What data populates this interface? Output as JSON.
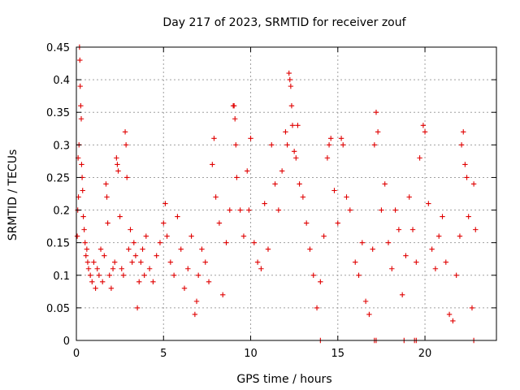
{
  "chart_data": {
    "type": "scatter",
    "title": "Day 217 of 2023, SRMTID for receiver zouf",
    "xlabel": "GPS time / hours",
    "ylabel": "SRMTID / TECUs",
    "xlim": [
      0,
      24.1
    ],
    "ylim": [
      0,
      0.45
    ],
    "xticks": [
      0,
      5,
      10,
      15,
      20
    ],
    "xtick_labels": [
      "0",
      "5",
      "10",
      "15",
      "20"
    ],
    "yticks": [
      0,
      0.05,
      0.1,
      0.15,
      0.2,
      0.25,
      0.3,
      0.35,
      0.4,
      0.45
    ],
    "ytick_labels": [
      "0",
      "0.05",
      "0.1",
      "0.15",
      "0.2",
      "0.25",
      "0.3",
      "0.35",
      "0.4",
      "0.45"
    ],
    "grid": true,
    "marker": "plus",
    "color": "#e00000",
    "series": [
      {
        "name": "SRMTID",
        "points": [
          [
            0.05,
            0.16
          ],
          [
            0.08,
            0.2
          ],
          [
            0.1,
            0.28
          ],
          [
            0.12,
            0.22
          ],
          [
            0.15,
            0.3
          ],
          [
            0.18,
            0.45
          ],
          [
            0.2,
            0.43
          ],
          [
            0.22,
            0.39
          ],
          [
            0.25,
            0.36
          ],
          [
            0.28,
            0.34
          ],
          [
            0.3,
            0.27
          ],
          [
            0.33,
            0.25
          ],
          [
            0.36,
            0.23
          ],
          [
            0.4,
            0.19
          ],
          [
            0.45,
            0.17
          ],
          [
            0.5,
            0.15
          ],
          [
            0.55,
            0.13
          ],
          [
            0.6,
            0.14
          ],
          [
            0.65,
            0.12
          ],
          [
            0.7,
            0.11
          ],
          [
            0.8,
            0.1
          ],
          [
            0.9,
            0.09
          ],
          [
            1.0,
            0.12
          ],
          [
            1.1,
            0.08
          ],
          [
            1.2,
            0.11
          ],
          [
            1.3,
            0.1
          ],
          [
            1.4,
            0.14
          ],
          [
            1.5,
            0.09
          ],
          [
            1.6,
            0.13
          ],
          [
            1.7,
            0.24
          ],
          [
            1.75,
            0.22
          ],
          [
            1.8,
            0.18
          ],
          [
            1.9,
            0.1
          ],
          [
            2.0,
            0.08
          ],
          [
            2.1,
            0.11
          ],
          [
            2.2,
            0.12
          ],
          [
            2.3,
            0.28
          ],
          [
            2.35,
            0.27
          ],
          [
            2.4,
            0.26
          ],
          [
            2.5,
            0.19
          ],
          [
            2.6,
            0.11
          ],
          [
            2.7,
            0.1
          ],
          [
            2.8,
            0.32
          ],
          [
            2.85,
            0.3
          ],
          [
            2.9,
            0.25
          ],
          [
            3.0,
            0.14
          ],
          [
            3.1,
            0.17
          ],
          [
            3.2,
            0.12
          ],
          [
            3.3,
            0.15
          ],
          [
            3.4,
            0.13
          ],
          [
            3.5,
            0.05
          ],
          [
            3.6,
            0.09
          ],
          [
            3.7,
            0.12
          ],
          [
            3.8,
            0.14
          ],
          [
            3.9,
            0.1
          ],
          [
            4.0,
            0.16
          ],
          [
            4.2,
            0.11
          ],
          [
            4.4,
            0.09
          ],
          [
            4.6,
            0.13
          ],
          [
            4.8,
            0.15
          ],
          [
            5.0,
            0.18
          ],
          [
            5.1,
            0.21
          ],
          [
            5.2,
            0.16
          ],
          [
            5.4,
            0.12
          ],
          [
            5.6,
            0.1
          ],
          [
            5.8,
            0.19
          ],
          [
            6.0,
            0.14
          ],
          [
            6.2,
            0.08
          ],
          [
            6.4,
            0.11
          ],
          [
            6.6,
            0.16
          ],
          [
            6.8,
            0.04
          ],
          [
            6.9,
            0.06
          ],
          [
            7.0,
            0.1
          ],
          [
            7.2,
            0.14
          ],
          [
            7.4,
            0.12
          ],
          [
            7.6,
            0.09
          ],
          [
            7.8,
            0.27
          ],
          [
            7.9,
            0.31
          ],
          [
            8.0,
            0.22
          ],
          [
            8.2,
            0.18
          ],
          [
            8.4,
            0.07
          ],
          [
            8.6,
            0.15
          ],
          [
            8.8,
            0.2
          ],
          [
            9.0,
            0.36
          ],
          [
            9.05,
            0.36
          ],
          [
            9.1,
            0.34
          ],
          [
            9.15,
            0.3
          ],
          [
            9.2,
            0.25
          ],
          [
            9.4,
            0.2
          ],
          [
            9.6,
            0.16
          ],
          [
            9.8,
            0.26
          ],
          [
            9.9,
            0.2
          ],
          [
            10.0,
            0.31
          ],
          [
            10.2,
            0.15
          ],
          [
            10.4,
            0.12
          ],
          [
            10.6,
            0.11
          ],
          [
            10.8,
            0.21
          ],
          [
            11.0,
            0.14
          ],
          [
            11.2,
            0.3
          ],
          [
            11.4,
            0.24
          ],
          [
            11.6,
            0.2
          ],
          [
            11.8,
            0.26
          ],
          [
            12.0,
            0.32
          ],
          [
            12.1,
            0.3
          ],
          [
            12.2,
            0.41
          ],
          [
            12.25,
            0.4
          ],
          [
            12.3,
            0.39
          ],
          [
            12.35,
            0.36
          ],
          [
            12.4,
            0.33
          ],
          [
            12.5,
            0.29
          ],
          [
            12.6,
            0.28
          ],
          [
            12.7,
            0.33
          ],
          [
            12.8,
            0.24
          ],
          [
            13.0,
            0.22
          ],
          [
            13.2,
            0.18
          ],
          [
            13.4,
            0.14
          ],
          [
            13.6,
            0.1
          ],
          [
            13.8,
            0.05
          ],
          [
            14.0,
            0.09
          ],
          [
            14.2,
            0.16
          ],
          [
            14.4,
            0.28
          ],
          [
            14.5,
            0.3
          ],
          [
            14.6,
            0.31
          ],
          [
            14.8,
            0.23
          ],
          [
            15.0,
            0.18
          ],
          [
            15.2,
            0.31
          ],
          [
            15.3,
            0.3
          ],
          [
            15.5,
            0.22
          ],
          [
            15.7,
            0.2
          ],
          [
            16.0,
            0.12
          ],
          [
            16.2,
            0.1
          ],
          [
            16.4,
            0.15
          ],
          [
            16.6,
            0.06
          ],
          [
            16.8,
            0.04
          ],
          [
            17.0,
            0.14
          ],
          [
            17.1,
            0.3
          ],
          [
            17.2,
            0.35
          ],
          [
            17.3,
            0.32
          ],
          [
            17.5,
            0.2
          ],
          [
            17.7,
            0.24
          ],
          [
            17.9,
            0.15
          ],
          [
            18.1,
            0.11
          ],
          [
            18.3,
            0.2
          ],
          [
            18.5,
            0.17
          ],
          [
            18.7,
            0.07
          ],
          [
            18.9,
            0.13
          ],
          [
            19.1,
            0.22
          ],
          [
            19.3,
            0.17
          ],
          [
            19.5,
            0.12
          ],
          [
            19.7,
            0.28
          ],
          [
            19.9,
            0.33
          ],
          [
            20.0,
            0.32
          ],
          [
            20.2,
            0.21
          ],
          [
            20.4,
            0.14
          ],
          [
            20.6,
            0.11
          ],
          [
            20.8,
            0.16
          ],
          [
            21.0,
            0.19
          ],
          [
            21.2,
            0.12
          ],
          [
            21.4,
            0.04
          ],
          [
            21.6,
            0.03
          ],
          [
            21.8,
            0.1
          ],
          [
            22.0,
            0.16
          ],
          [
            22.1,
            0.3
          ],
          [
            22.2,
            0.32
          ],
          [
            22.3,
            0.27
          ],
          [
            22.4,
            0.25
          ],
          [
            22.5,
            0.19
          ],
          [
            22.7,
            0.05
          ],
          [
            22.8,
            0.24
          ],
          [
            22.9,
            0.17
          ]
        ]
      }
    ],
    "zero_markers_x": [
      14.0,
      17.1,
      17.2,
      18.8,
      19.4,
      19.5,
      22.8
    ]
  }
}
